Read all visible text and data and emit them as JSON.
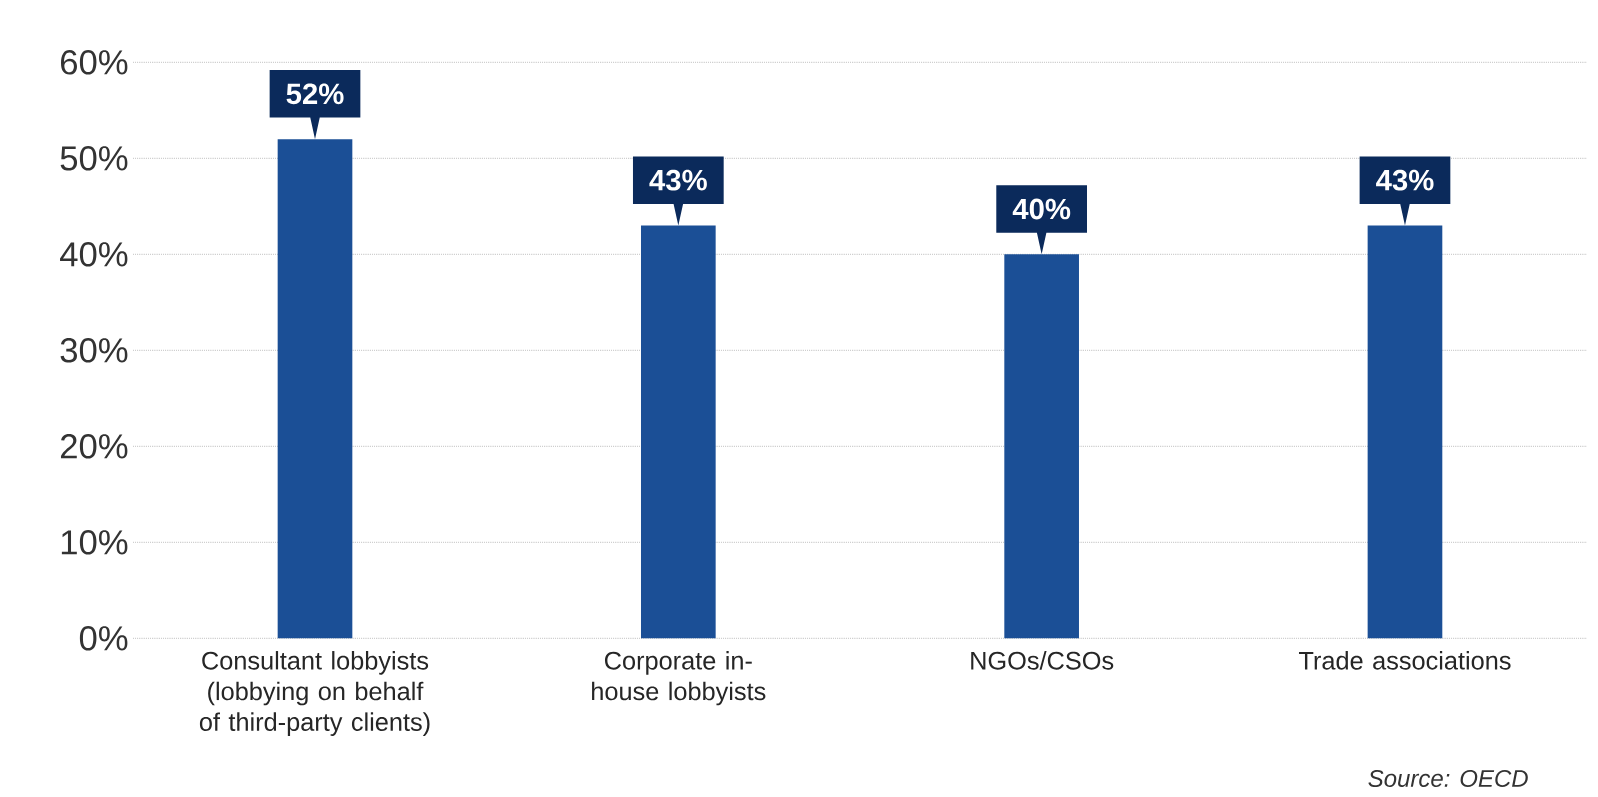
{
  "chart_data": {
    "type": "bar",
    "categories": [
      "Consultant lobbyists (lobbying on behalf of third-party clients)",
      "Corporate in-house lobbyists",
      "NGOs/CSOs",
      "Trade associations"
    ],
    "values": [
      52,
      43,
      40,
      43
    ],
    "value_labels": [
      "52%",
      "43%",
      "40%",
      "43%"
    ],
    "color": "#1b4f96",
    "ylim": [
      0,
      60
    ],
    "yticks": [
      {
        "value": 0,
        "label": "0%"
      },
      {
        "value": 10,
        "label": "10%"
      },
      {
        "value": 20,
        "label": "20%"
      },
      {
        "value": 30,
        "label": "30%"
      },
      {
        "value": 40,
        "label": "40%"
      },
      {
        "value": 50,
        "label": "50%"
      },
      {
        "value": 60,
        "label": "60%"
      }
    ],
    "grid": "y",
    "annotations": [
      "Source: OECD"
    ]
  }
}
